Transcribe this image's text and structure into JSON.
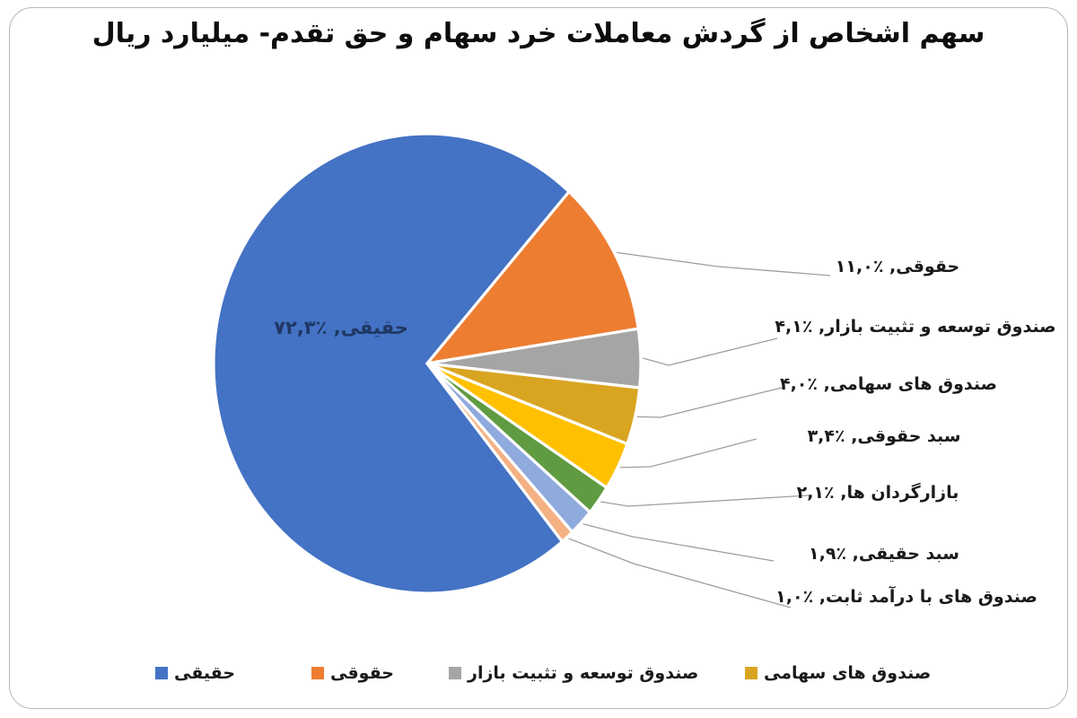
{
  "title": "سهم اشخاص از گردش معاملات خرد سهام و حق تقدم- میلیارد ریال",
  "chart_data": {
    "type": "pie",
    "title": "سهم اشخاص از گردش معاملات خرد سهام و حق تقدم- میلیارد ریال",
    "legend_position": "bottom",
    "slices": [
      {
        "label": "حقیقی",
        "value": 72.3,
        "display": "حقیقی, ٪۷۲,۳",
        "color": "#4472C4",
        "label_placement": "inside"
      },
      {
        "label": "حقوقی",
        "value": 11.0,
        "display": "حقوقی, ٪۱۱,۰",
        "color": "#ED7D31",
        "label_placement": "outside"
      },
      {
        "label": "صندوق توسعه و تثبیت بازار",
        "value": 4.1,
        "display": "صندوق توسعه و تثبیت بازار, ٪۴,۱",
        "color": "#A5A5A5",
        "label_placement": "outside"
      },
      {
        "label": "صندوق های سهامی",
        "value": 4.0,
        "display": "صندوق های سهامی, ٪۴,۰",
        "color": "#D9A521",
        "label_placement": "outside"
      },
      {
        "label": "سبد حقوقی",
        "value": 3.4,
        "display": "سبد حقوقی, ٪۳,۴",
        "color": "#FFC000",
        "label_placement": "outside"
      },
      {
        "label": "بازارگردان ها",
        "value": 2.1,
        "display": "بازارگردان ها, ٪۲,۱",
        "color": "#5F9B41",
        "label_placement": "outside"
      },
      {
        "label": "سبد حقیقی",
        "value": 1.9,
        "display": "سبد حقیقی, ٪۱,۹",
        "color": "#8FAADC",
        "label_placement": "outside"
      },
      {
        "label": "صندوق های با درآمد ثابت",
        "value": 1.0,
        "display": "صندوق های با درآمد ثابت, ٪۱,۰",
        "color": "#F4B183",
        "label_placement": "outside"
      }
    ],
    "legend": [
      {
        "label": "حقیقی",
        "color": "#4472C4"
      },
      {
        "label": "حقوقی",
        "color": "#ED7D31"
      },
      {
        "label": "صندوق توسعه و تثبیت بازار",
        "color": "#A5A5A5"
      },
      {
        "label": "صندوق های سهامی",
        "color": "#D9A521"
      }
    ]
  },
  "colors": {
    "inside_label": "#1F3864",
    "leader_line": "#9e9e9e",
    "frame_border": "#b4b9bf",
    "slice_gap": "#ffffff"
  }
}
